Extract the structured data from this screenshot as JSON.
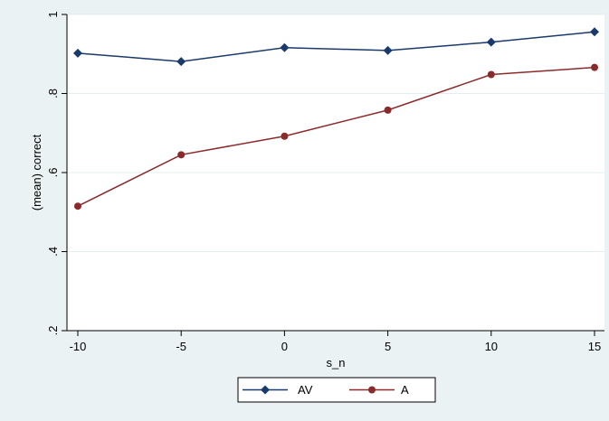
{
  "chart_data": {
    "type": "line",
    "x": [
      -10,
      -5,
      0,
      5,
      10,
      15
    ],
    "series": [
      {
        "name": "AV",
        "values": [
          0.902,
          0.881,
          0.916,
          0.909,
          0.93,
          0.956
        ],
        "color": "#1a3a6b",
        "marker": "diamond"
      },
      {
        "name": "A",
        "values": [
          0.515,
          0.645,
          0.692,
          0.758,
          0.848,
          0.866
        ],
        "color": "#8b2a2a",
        "marker": "circle"
      }
    ],
    "xlabel": "s_n",
    "ylabel": "(mean) correct",
    "xlim": [
      -10,
      15
    ],
    "ylim": [
      0.2,
      1.0
    ],
    "xticks": [
      -10,
      -5,
      0,
      5,
      10,
      15
    ],
    "xtick_labels": [
      "-10",
      "-5",
      "0",
      "5",
      "10",
      "15"
    ],
    "yticks": [
      0.2,
      0.4,
      0.6,
      0.8,
      1.0
    ],
    "ytick_labels": [
      ".2",
      ".4",
      ".6",
      ".8",
      "1"
    ],
    "grid": true,
    "legend": "bottom",
    "colors": {
      "background": "#eaf2f3",
      "plot_background": "#ffffff",
      "grid": "#e3ecee"
    }
  }
}
